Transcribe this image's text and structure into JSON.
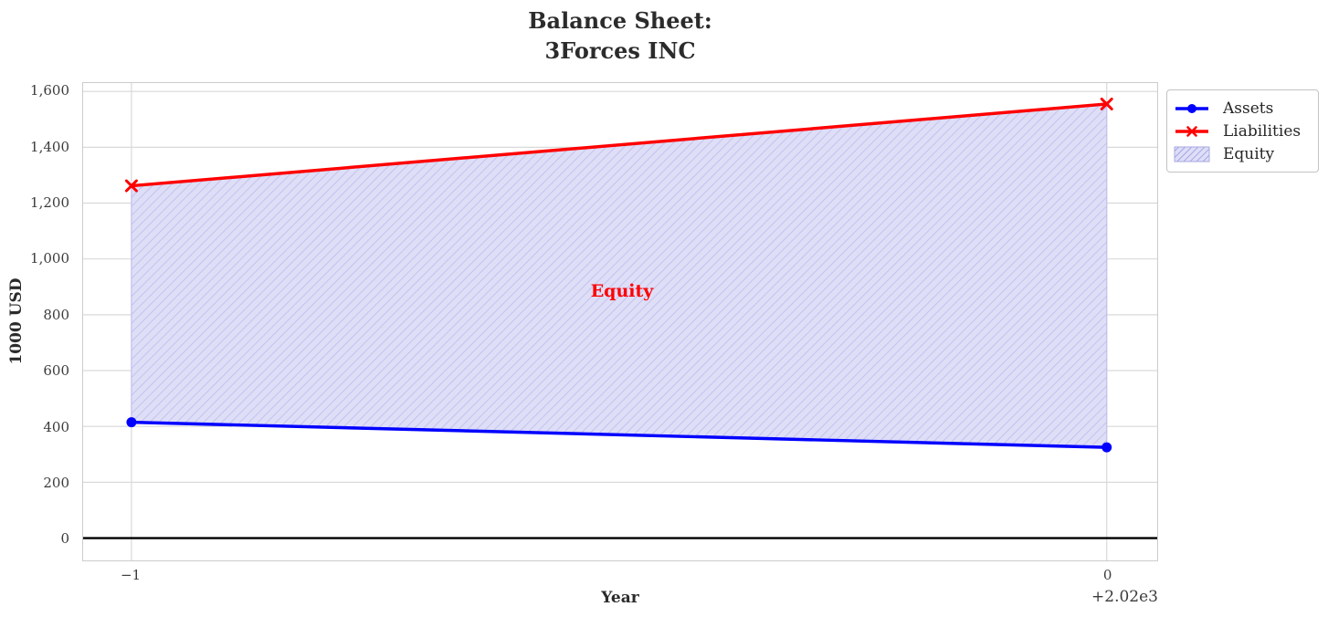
{
  "title": {
    "line1": "Balance Sheet:",
    "line2": "3Forces INC"
  },
  "axes": {
    "xlabel": "Year",
    "ylabel": "1000 USD",
    "x_offset_label": "+2.02e3"
  },
  "annotation": {
    "text": "Equity",
    "color": "#ff0000"
  },
  "legend": {
    "items": [
      {
        "label": "Assets",
        "type": "line-circle",
        "color": "#0000ff"
      },
      {
        "label": "Liabilities",
        "type": "line-x",
        "color": "#ff0000"
      },
      {
        "label": "Equity",
        "type": "hatch-patch",
        "color": "#dedef7"
      }
    ]
  },
  "chart_data": {
    "type": "line",
    "title": "Balance Sheet: 3Forces INC",
    "xlabel": "Year",
    "ylabel": "1000 USD",
    "x": [
      2019,
      2020
    ],
    "xtick_labels": [
      "−1",
      "0"
    ],
    "x_offset_text": "+2.02e3",
    "series": [
      {
        "name": "Assets",
        "color": "#0000ff",
        "marker": "circle",
        "line_width": 3.5,
        "values": [
          415,
          325
        ]
      },
      {
        "name": "Liabilities",
        "color": "#ff0000",
        "marker": "x",
        "line_width": 3.5,
        "values": [
          1262,
          1555
        ]
      }
    ],
    "fill_between": {
      "name": "Equity",
      "between": [
        "Assets",
        "Liabilities"
      ],
      "fill_color": "#dedef7",
      "hatch_color": "#bcbcee",
      "hatch": "///",
      "annotation": "Equity"
    },
    "ytick_values": [
      0,
      200,
      400,
      600,
      800,
      1000,
      1200,
      1400,
      1600
    ],
    "ytick_labels": [
      "0",
      "200",
      "400",
      "600",
      "800",
      "1,000",
      "1,200",
      "1,400",
      "1,600"
    ],
    "ylim": [
      -80,
      1630
    ],
    "grid": true,
    "grid_color": "#d9d9d9",
    "zero_line": true,
    "zero_line_color": "#000000",
    "legend_position": "upper right outside"
  }
}
